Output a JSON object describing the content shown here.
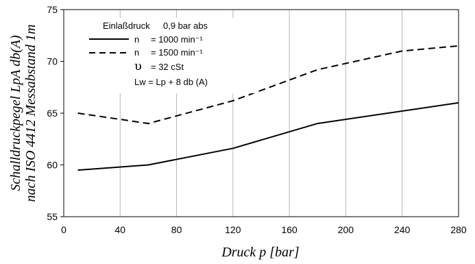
{
  "chart_data": {
    "type": "line",
    "xlabel": "Druck p [bar]",
    "ylabel_line1": "Schalldruckpegel LpA db(A)",
    "ylabel_line2": "nach ISO 4412 Messabstand 1m",
    "xlim": [
      0,
      280
    ],
    "ylim": [
      55,
      75
    ],
    "xticks": [
      0,
      40,
      80,
      120,
      160,
      200,
      240,
      280
    ],
    "yticks": [
      55,
      60,
      65,
      70,
      75
    ],
    "grid": "vertical",
    "series": [
      {
        "name": "n = 1000 min⁻¹",
        "style": "solid",
        "x": [
          10,
          60,
          120,
          180,
          280
        ],
        "y": [
          59.5,
          60.0,
          61.6,
          64.0,
          66.0
        ]
      },
      {
        "name": "n = 1500 min⁻¹",
        "style": "dashed",
        "x": [
          10,
          60,
          120,
          180,
          240,
          280
        ],
        "y": [
          65.0,
          64.0,
          66.2,
          69.2,
          71.0,
          71.5
        ]
      }
    ],
    "legend": {
      "placement": "top-left",
      "title_label": "Einlaßdruck",
      "title_value": "0,9 bar abs",
      "entries": [
        {
          "symbol": "n",
          "value": "= 1000 min⁻¹",
          "style": "solid"
        },
        {
          "symbol": "n",
          "value": "= 1500 min⁻¹",
          "style": "dashed"
        }
      ],
      "viscosity_symbol": "υ",
      "viscosity_value": "= 32 cSt",
      "note": "Lw = Lp + 8 db (A)"
    }
  }
}
